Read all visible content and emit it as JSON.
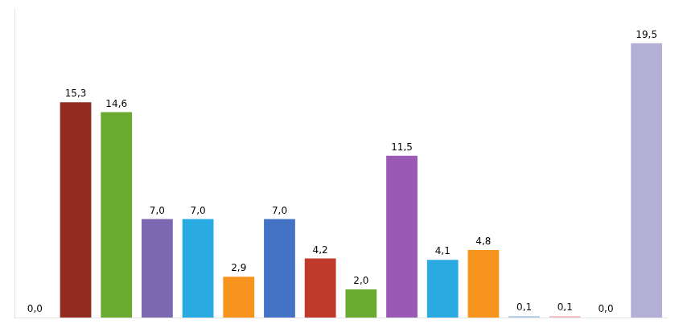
{
  "chart_data": {
    "type": "bar",
    "categories": [
      null,
      null,
      null,
      null,
      null,
      null,
      null,
      null,
      null,
      null,
      null,
      null,
      null,
      null,
      null,
      null
    ],
    "values": [
      0.0,
      15.3,
      14.6,
      7.0,
      7.0,
      2.9,
      7.0,
      4.2,
      2.0,
      11.5,
      4.1,
      4.8,
      0.1,
      0.1,
      0.0,
      19.5
    ],
    "value_labels": [
      "0,0",
      "15,3",
      "14,6",
      "7,0",
      "7,0",
      "2,9",
      "7,0",
      "4,2",
      "2,0",
      "11,5",
      "4,1",
      "4,8",
      "0,1",
      "0,1",
      "0,0",
      "19,5"
    ],
    "colors": [
      "#c0392b",
      "#922b21",
      "#6aaa30",
      "#7b68b0",
      "#29abe2",
      "#f7941d",
      "#4472c4",
      "#c0392b",
      "#6aaa30",
      "#9b59b6",
      "#29abe2",
      "#f7941d",
      "#aec6e8",
      "#f4b8b8",
      "#b8e0a0",
      "#b4afd4"
    ],
    "ylim": [
      0,
      22
    ],
    "grid": false,
    "data_labels": true,
    "tick_labels": false
  }
}
